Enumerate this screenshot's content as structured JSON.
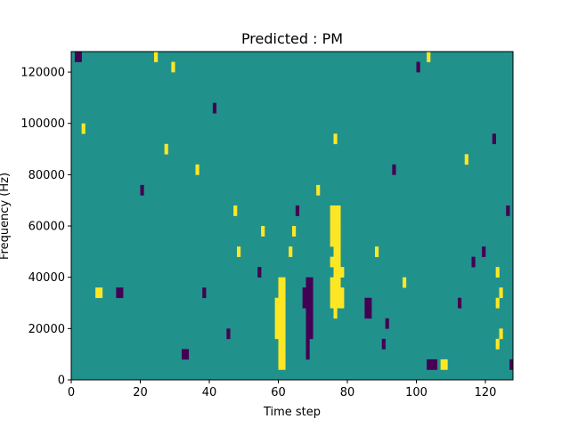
{
  "chart_data": {
    "type": "heatmap",
    "title": "Predicted : PM",
    "xlabel": "Time step",
    "ylabel": "Frequency (Hz)",
    "xlim": [
      0,
      128
    ],
    "ylim": [
      0,
      128000
    ],
    "xticks": [
      0,
      20,
      40,
      60,
      80,
      100,
      120
    ],
    "yticks": [
      0,
      20000,
      40000,
      60000,
      80000,
      100000,
      120000
    ],
    "grid": false,
    "legend": "none",
    "colormap": {
      "-1": "#440154",
      "0": "#21918c",
      "1": "#fde725"
    },
    "background_value": 0,
    "cells": {
      "yellow": [
        [
          60,
          4
        ],
        [
          60,
          8
        ],
        [
          60,
          12
        ],
        [
          60,
          16
        ],
        [
          60,
          20
        ],
        [
          60,
          24
        ],
        [
          60,
          28
        ],
        [
          60,
          32
        ],
        [
          60,
          36
        ],
        [
          61,
          4
        ],
        [
          61,
          8
        ],
        [
          61,
          12
        ],
        [
          61,
          16
        ],
        [
          61,
          20
        ],
        [
          61,
          24
        ],
        [
          61,
          28
        ],
        [
          61,
          32
        ],
        [
          61,
          36
        ],
        [
          59,
          16
        ],
        [
          59,
          20
        ],
        [
          59,
          24
        ],
        [
          59,
          28
        ],
        [
          77,
          28
        ],
        [
          77,
          32
        ],
        [
          77,
          36
        ],
        [
          77,
          40
        ],
        [
          77,
          44
        ],
        [
          77,
          48
        ],
        [
          77,
          52
        ],
        [
          77,
          56
        ],
        [
          77,
          60
        ],
        [
          77,
          64
        ],
        [
          76,
          24
        ],
        [
          76,
          28
        ],
        [
          76,
          32
        ],
        [
          76,
          36
        ],
        [
          76,
          40
        ],
        [
          76,
          44
        ],
        [
          76,
          48
        ],
        [
          76,
          52
        ],
        [
          76,
          56
        ],
        [
          76,
          60
        ],
        [
          76,
          64
        ],
        [
          75,
          28
        ],
        [
          75,
          32
        ],
        [
          75,
          36
        ],
        [
          75,
          44
        ],
        [
          75,
          52
        ],
        [
          75,
          56
        ],
        [
          75,
          60
        ],
        [
          75,
          64
        ],
        [
          78,
          28
        ],
        [
          78,
          32
        ],
        [
          78,
          40
        ],
        [
          123,
          12
        ],
        [
          123,
          28
        ],
        [
          123,
          40
        ],
        [
          124,
          16
        ],
        [
          124,
          32
        ],
        [
          107,
          4
        ],
        [
          108,
          4
        ],
        [
          7,
          32
        ],
        [
          8,
          32
        ],
        [
          29,
          120
        ],
        [
          24,
          124
        ],
        [
          36,
          80
        ],
        [
          27,
          88
        ],
        [
          71,
          72
        ],
        [
          76,
          92
        ],
        [
          103,
          124
        ],
        [
          96,
          36
        ],
        [
          48,
          48
        ],
        [
          55,
          56
        ],
        [
          63,
          48
        ],
        [
          64,
          56
        ],
        [
          88,
          48
        ],
        [
          47,
          64
        ],
        [
          114,
          84
        ],
        [
          3,
          96
        ]
      ],
      "purple": [
        [
          68,
          8
        ],
        [
          68,
          12
        ],
        [
          68,
          16
        ],
        [
          68,
          20
        ],
        [
          68,
          24
        ],
        [
          68,
          28
        ],
        [
          68,
          32
        ],
        [
          68,
          36
        ],
        [
          69,
          16
        ],
        [
          69,
          20
        ],
        [
          69,
          24
        ],
        [
          69,
          28
        ],
        [
          69,
          32
        ],
        [
          69,
          36
        ],
        [
          67,
          28
        ],
        [
          67,
          32
        ],
        [
          103,
          4
        ],
        [
          104,
          4
        ],
        [
          105,
          4
        ],
        [
          32,
          8
        ],
        [
          33,
          8
        ],
        [
          13,
          32
        ],
        [
          14,
          32
        ],
        [
          85,
          24
        ],
        [
          85,
          28
        ],
        [
          86,
          24
        ],
        [
          86,
          28
        ],
        [
          1,
          124
        ],
        [
          2,
          124
        ],
        [
          41,
          104
        ],
        [
          54,
          40
        ],
        [
          65,
          64
        ],
        [
          93,
          80
        ],
        [
          116,
          44
        ],
        [
          126,
          64
        ],
        [
          119,
          48
        ],
        [
          90,
          12
        ],
        [
          91,
          20
        ],
        [
          112,
          28
        ],
        [
          45,
          16
        ],
        [
          20,
          72
        ],
        [
          100,
          120
        ],
        [
          122,
          92
        ],
        [
          127,
          4
        ],
        [
          38,
          32
        ]
      ]
    }
  }
}
